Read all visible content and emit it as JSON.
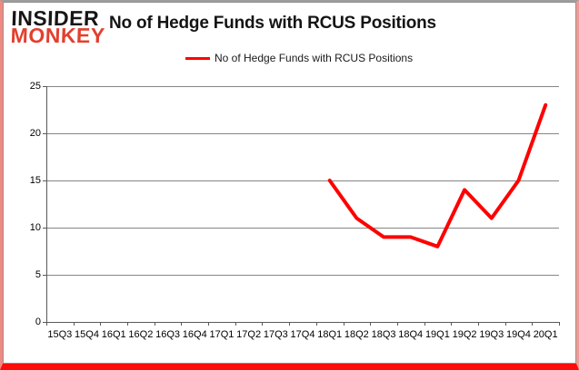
{
  "logo": {
    "line1": "INSIDER",
    "line2": "MONKEY",
    "line2_color": "#e2402e"
  },
  "header": {
    "title": "No of Hedge Funds with RCUS Positions"
  },
  "legend": {
    "label": "No of Hedge Funds with RCUS Positions",
    "line_color": "#ff0000"
  },
  "chart_data": {
    "type": "line",
    "title": "No of Hedge Funds with RCUS Positions",
    "categories": [
      "15Q3",
      "15Q4",
      "16Q1",
      "16Q2",
      "16Q3",
      "16Q4",
      "17Q1",
      "17Q2",
      "17Q3",
      "17Q4",
      "18Q1",
      "18Q2",
      "18Q3",
      "18Q4",
      "19Q1",
      "19Q2",
      "19Q3",
      "19Q4",
      "20Q1"
    ],
    "series": [
      {
        "name": "No of Hedge Funds with RCUS Positions",
        "color": "#ff0000",
        "values": [
          null,
          null,
          null,
          null,
          null,
          null,
          null,
          null,
          null,
          null,
          15,
          11,
          9,
          9,
          8,
          14,
          11,
          15,
          23
        ]
      }
    ],
    "xlabel": "",
    "ylabel": "",
    "ylim": [
      0,
      25
    ],
    "yticks": [
      0,
      5,
      10,
      15,
      20,
      25
    ],
    "grid": "horizontal",
    "gridline_color": "#868686",
    "axis_color": "#595959",
    "legend_position": "top"
  }
}
